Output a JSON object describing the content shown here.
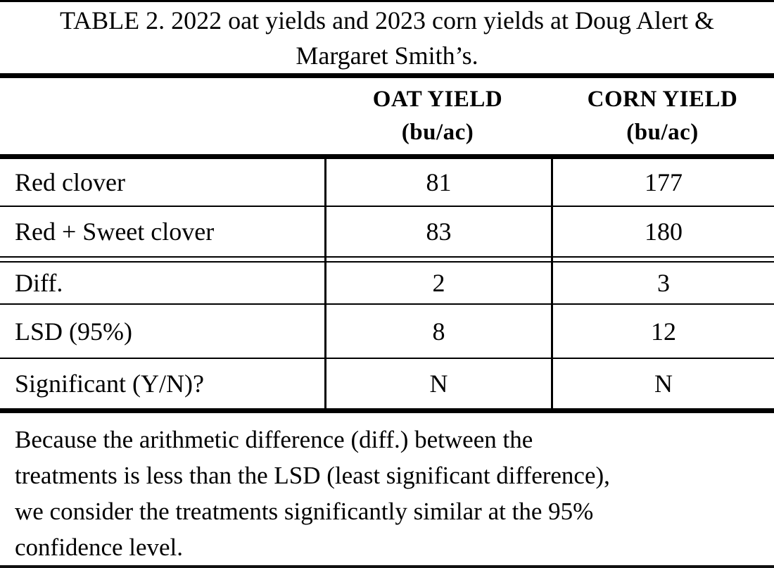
{
  "caption": {
    "line1": "TABLE 2. 2022 oat yields and 2023 corn yields at Doug Alert &",
    "line2": "Margaret Smith’s."
  },
  "columns": [
    {
      "label": "OAT YIELD",
      "unit": "(bu/ac)"
    },
    {
      "label": "CORN YIELD",
      "unit": "(bu/ac)"
    }
  ],
  "rows": [
    {
      "label": "Red clover",
      "oat": "81",
      "corn": "177"
    },
    {
      "label": "Red + Sweet clover",
      "oat": "83",
      "corn": "180"
    },
    {
      "label": "Diff.",
      "oat": "2",
      "corn": "3"
    },
    {
      "label": "LSD (95%)",
      "oat": "8",
      "corn": "12"
    },
    {
      "label": "Significant (Y/N)?",
      "oat": "N",
      "corn": "N"
    }
  ],
  "footnote": {
    "lines": [
      "Because the arithmetic difference (diff.) between the",
      "treatments is less than the LSD (least significant difference),",
      "we consider the treatments significantly similar at the 95%",
      "confidence level."
    ]
  },
  "colors": {
    "text": "#000000",
    "background": "#ffffff",
    "rule": "#000000"
  }
}
